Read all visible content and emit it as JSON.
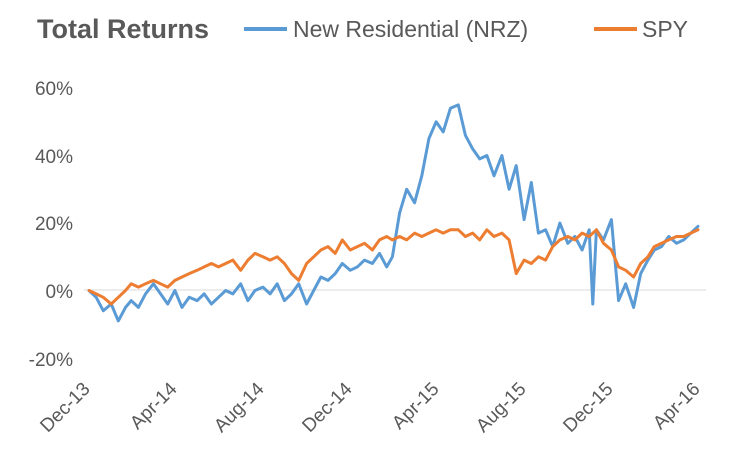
{
  "chart_data": {
    "type": "line",
    "title": "Total Returns",
    "xlabel": "",
    "ylabel": "",
    "x_ticks": [
      "Dec-13",
      "Apr-14",
      "Aug-14",
      "Dec-14",
      "Apr-15",
      "Aug-15",
      "Dec-15",
      "Apr-16"
    ],
    "y_ticks": [
      "60%",
      "40%",
      "20%",
      "0%",
      "-20%"
    ],
    "ylim": [
      -20,
      60
    ],
    "xlim": [
      "2013-12-31",
      "2016-04-30"
    ],
    "grid": false,
    "legend": "top",
    "series": [
      {
        "name": "New Residential (NRZ)",
        "color": "#5B9BD5",
        "x": [
          "2013-12-31",
          "2014-01-10",
          "2014-01-20",
          "2014-01-31",
          "2014-02-10",
          "2014-02-20",
          "2014-02-28",
          "2014-03-10",
          "2014-03-20",
          "2014-03-31",
          "2014-04-10",
          "2014-04-20",
          "2014-04-30",
          "2014-05-10",
          "2014-05-20",
          "2014-05-31",
          "2014-06-10",
          "2014-06-20",
          "2014-06-30",
          "2014-07-10",
          "2014-07-20",
          "2014-07-31",
          "2014-08-10",
          "2014-08-20",
          "2014-08-31",
          "2014-09-10",
          "2014-09-20",
          "2014-09-30",
          "2014-10-10",
          "2014-10-20",
          "2014-10-31",
          "2014-11-10",
          "2014-11-20",
          "2014-11-30",
          "2014-12-10",
          "2014-12-20",
          "2014-12-31",
          "2015-01-10",
          "2015-01-20",
          "2015-01-31",
          "2015-02-10",
          "2015-02-20",
          "2015-02-28",
          "2015-03-10",
          "2015-03-20",
          "2015-03-31",
          "2015-04-10",
          "2015-04-20",
          "2015-04-30",
          "2015-05-10",
          "2015-05-20",
          "2015-05-31",
          "2015-06-10",
          "2015-06-20",
          "2015-06-30",
          "2015-07-10",
          "2015-07-20",
          "2015-07-31",
          "2015-08-10",
          "2015-08-20",
          "2015-08-31",
          "2015-09-10",
          "2015-09-20",
          "2015-09-30",
          "2015-10-10",
          "2015-10-20",
          "2015-10-31",
          "2015-11-10",
          "2015-11-20",
          "2015-11-30",
          "2015-12-05",
          "2015-12-10",
          "2015-12-20",
          "2015-12-31",
          "2016-01-10",
          "2016-01-20",
          "2016-01-31",
          "2016-02-10",
          "2016-02-20",
          "2016-02-29",
          "2016-03-10",
          "2016-03-20",
          "2016-03-31",
          "2016-04-10",
          "2016-04-20",
          "2016-04-30"
        ],
        "values": [
          0,
          -2,
          -6,
          -4,
          -9,
          -5,
          -3,
          -5,
          -1,
          2,
          -1,
          -4,
          0,
          -5,
          -2,
          -3,
          -1,
          -4,
          -2,
          0,
          -1,
          2,
          -3,
          0,
          1,
          -1,
          2,
          -3,
          -1,
          2,
          -4,
          0,
          4,
          3,
          5,
          8,
          6,
          7,
          9,
          8,
          11,
          7,
          10,
          23,
          30,
          26,
          34,
          45,
          50,
          47,
          54,
          55,
          46,
          42,
          39,
          40,
          34,
          40,
          30,
          37,
          21,
          32,
          17,
          18,
          13,
          20,
          14,
          16,
          12,
          18,
          -4,
          18,
          15,
          21,
          -3,
          2,
          -5,
          5,
          9,
          12,
          13,
          16,
          14,
          15,
          17,
          19
        ]
      },
      {
        "name": "SPY",
        "color": "#ED7D31",
        "x": [
          "2013-12-31",
          "2014-01-10",
          "2014-01-20",
          "2014-01-31",
          "2014-02-10",
          "2014-02-20",
          "2014-02-28",
          "2014-03-10",
          "2014-03-20",
          "2014-03-31",
          "2014-04-10",
          "2014-04-20",
          "2014-04-30",
          "2014-05-10",
          "2014-05-20",
          "2014-05-31",
          "2014-06-10",
          "2014-06-20",
          "2014-06-30",
          "2014-07-10",
          "2014-07-20",
          "2014-07-31",
          "2014-08-10",
          "2014-08-20",
          "2014-08-31",
          "2014-09-10",
          "2014-09-20",
          "2014-09-30",
          "2014-10-10",
          "2014-10-20",
          "2014-10-31",
          "2014-11-10",
          "2014-11-20",
          "2014-11-30",
          "2014-12-10",
          "2014-12-20",
          "2014-12-31",
          "2015-01-10",
          "2015-01-20",
          "2015-01-31",
          "2015-02-10",
          "2015-02-20",
          "2015-02-28",
          "2015-03-10",
          "2015-03-20",
          "2015-03-31",
          "2015-04-10",
          "2015-04-20",
          "2015-04-30",
          "2015-05-10",
          "2015-05-20",
          "2015-05-31",
          "2015-06-10",
          "2015-06-20",
          "2015-06-30",
          "2015-07-10",
          "2015-07-20",
          "2015-07-31",
          "2015-08-10",
          "2015-08-20",
          "2015-08-31",
          "2015-09-10",
          "2015-09-20",
          "2015-09-30",
          "2015-10-10",
          "2015-10-20",
          "2015-10-31",
          "2015-11-10",
          "2015-11-20",
          "2015-11-30",
          "2015-12-10",
          "2015-12-20",
          "2015-12-31",
          "2016-01-10",
          "2016-01-20",
          "2016-01-31",
          "2016-02-10",
          "2016-02-20",
          "2016-02-29",
          "2016-03-10",
          "2016-03-20",
          "2016-03-31",
          "2016-04-10",
          "2016-04-20",
          "2016-04-30"
        ],
        "values": [
          0,
          -1,
          -2,
          -4,
          -2,
          0,
          2,
          1,
          2,
          3,
          2,
          1,
          3,
          4,
          5,
          6,
          7,
          8,
          7,
          8,
          9,
          6,
          9,
          11,
          10,
          9,
          10,
          8,
          5,
          3,
          8,
          10,
          12,
          13,
          11,
          15,
          12,
          13,
          14,
          12,
          15,
          16,
          15,
          16,
          15,
          17,
          16,
          17,
          18,
          17,
          18,
          18,
          16,
          17,
          15,
          18,
          16,
          17,
          15,
          5,
          9,
          8,
          10,
          9,
          13,
          15,
          16,
          15,
          17,
          16,
          18,
          14,
          12,
          7,
          6,
          4,
          8,
          10,
          13,
          14,
          15,
          16,
          16,
          17,
          18
        ]
      }
    ]
  }
}
